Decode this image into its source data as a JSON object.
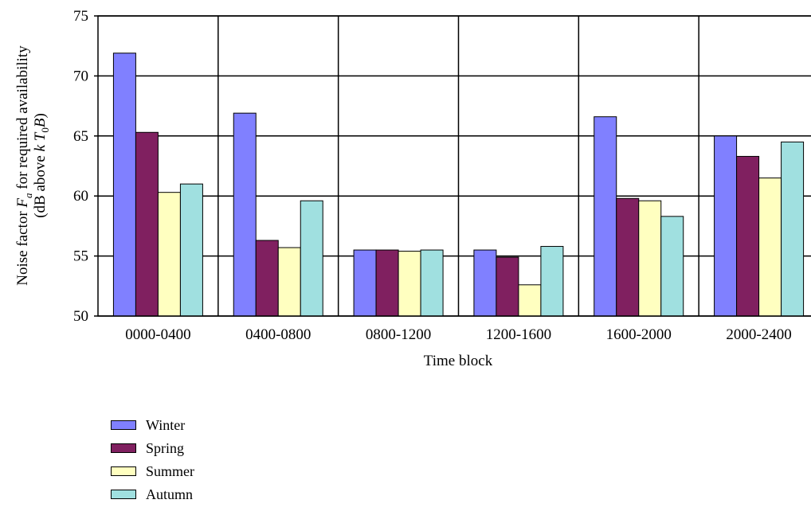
{
  "chart_data": {
    "type": "bar",
    "categories": [
      "0000-0400",
      "0400-0800",
      "0800-1200",
      "1200-1600",
      "1600-2000",
      "2000-2400"
    ],
    "series": [
      {
        "name": "Winter",
        "color": "#8080ff",
        "values": [
          71.9,
          66.9,
          55.5,
          55.5,
          66.6,
          65.0
        ]
      },
      {
        "name": "Spring",
        "color": "#802060",
        "values": [
          65.3,
          56.3,
          55.5,
          54.9,
          59.8,
          63.3
        ]
      },
      {
        "name": "Summer",
        "color": "#ffffc0",
        "values": [
          60.3,
          55.7,
          55.4,
          52.6,
          59.6,
          61.5
        ]
      },
      {
        "name": "Autumn",
        "color": "#a0e0e0",
        "values": [
          61.0,
          59.6,
          55.5,
          55.8,
          58.3,
          64.5
        ]
      }
    ],
    "ylim": [
      50,
      75
    ],
    "yticks": [
      50,
      55,
      60,
      65,
      70,
      75
    ],
    "xlabel": "Time block",
    "ylabel_line1_prefix": "Noise factor ",
    "ylabel_line1_var": "F",
    "ylabel_line1_sub": "a",
    "ylabel_line1_suffix": " for required availability",
    "ylabel_line2_prefix": "(dB above ",
    "ylabel_line2_var1": "k T",
    "ylabel_line2_sub": "0",
    "ylabel_line2_var2": "B",
    "ylabel_line2_suffix": ")",
    "grid": true,
    "legend_position": "bottom-left"
  }
}
